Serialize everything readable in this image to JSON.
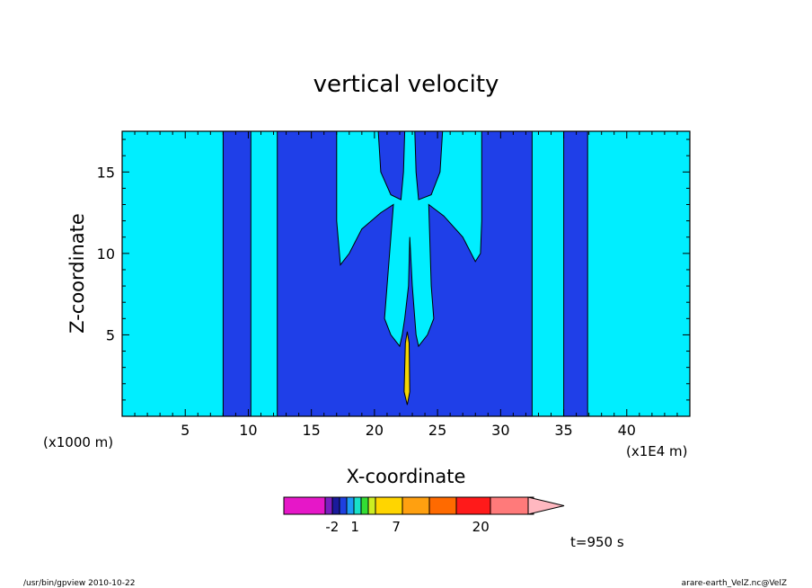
{
  "chart_data": {
    "type": "heatmap",
    "title": "vertical velocity",
    "xlabel": "X-coordinate",
    "ylabel": "Z-coordinate",
    "x_unit_left": "(x1000 m)",
    "x_unit_right": "(x1E4 m)",
    "xlim": [
      0,
      45
    ],
    "ylim": [
      0,
      17.5
    ],
    "x_ticks": [
      5,
      10,
      15,
      20,
      25,
      30,
      35,
      40
    ],
    "y_ticks": [
      5,
      10,
      15
    ],
    "time_label": "t=950 s",
    "colorbar": {
      "labels": [
        {
          "text": "-2",
          "pos": 0.198
        },
        {
          "text": "1",
          "pos": 0.291
        },
        {
          "text": "7",
          "pos": 0.46
        },
        {
          "text": "20",
          "pos": 0.806
        }
      ],
      "colors": [
        "#e617c8",
        "#7a1fc0",
        "#1a1a9c",
        "#1e3fe0",
        "#1e9bf5",
        "#18e0c8",
        "#33dd33",
        "#ccee22",
        "#ffd500",
        "#ffa010",
        "#ff6a00",
        "#ff1a1a",
        "#ff7a7a",
        "#ffb8c0"
      ]
    },
    "regions": [
      {
        "level": "blue",
        "polygon": [
          [
            8,
            0
          ],
          [
            8,
            17.5
          ],
          [
            36.9,
            17.5
          ],
          [
            36.9,
            0
          ]
        ]
      },
      {
        "level": "cyan",
        "polygon": [
          [
            10.2,
            0
          ],
          [
            10.2,
            17.5
          ],
          [
            12.3,
            17.5
          ],
          [
            12.3,
            0
          ]
        ]
      },
      {
        "level": "cyan",
        "polygon": [
          [
            17,
            17.5
          ],
          [
            17,
            12
          ],
          [
            17.3,
            9.3
          ],
          [
            18,
            10
          ],
          [
            19,
            11.5
          ],
          [
            20.5,
            12.5
          ],
          [
            21.5,
            13
          ],
          [
            21,
            8
          ],
          [
            20.8,
            6
          ],
          [
            21.3,
            5
          ],
          [
            22,
            4.3
          ],
          [
            22.2,
            5
          ],
          [
            22.4,
            6
          ],
          [
            22.7,
            8
          ],
          [
            22.8,
            11
          ],
          [
            23,
            8
          ],
          [
            23.2,
            6
          ],
          [
            23.3,
            5
          ],
          [
            23.5,
            4.3
          ],
          [
            24.2,
            5
          ],
          [
            24.7,
            6
          ],
          [
            24.5,
            8
          ],
          [
            24.3,
            13
          ],
          [
            25.5,
            12.3
          ],
          [
            27,
            11
          ],
          [
            28,
            9.5
          ],
          [
            28.4,
            10
          ],
          [
            28.5,
            12
          ],
          [
            28.5,
            17.5
          ]
        ]
      },
      {
        "level": "blue",
        "polygon": [
          [
            20.3,
            17.5
          ],
          [
            20.5,
            15
          ],
          [
            21.3,
            13.6
          ],
          [
            22.1,
            13.3
          ],
          [
            22.3,
            15
          ],
          [
            22.4,
            17.5
          ]
        ]
      },
      {
        "level": "blue",
        "polygon": [
          [
            23.2,
            17.5
          ],
          [
            23.3,
            15
          ],
          [
            23.5,
            13.3
          ],
          [
            24.5,
            13.6
          ],
          [
            25.2,
            15
          ],
          [
            25.4,
            17.5
          ]
        ]
      },
      {
        "level": "cyan",
        "polygon": [
          [
            32.5,
            0
          ],
          [
            32.5,
            17.5
          ],
          [
            35,
            17.5
          ],
          [
            35,
            0
          ]
        ]
      },
      {
        "level": "yellow",
        "polygon": [
          [
            22.35,
            1.5
          ],
          [
            22.45,
            4.5
          ],
          [
            22.6,
            5.2
          ],
          [
            22.75,
            4.5
          ],
          [
            22.8,
            1.5
          ],
          [
            22.6,
            0.7
          ]
        ]
      }
    ]
  }
}
